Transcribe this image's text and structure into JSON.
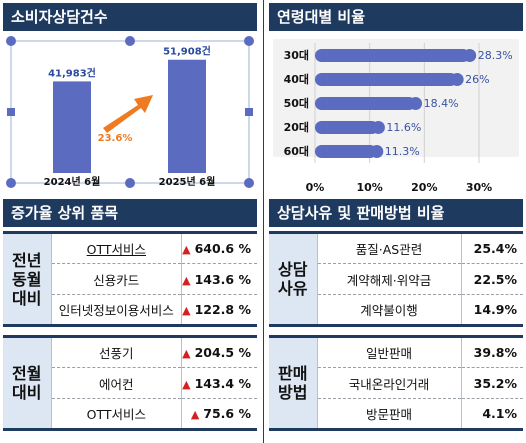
{
  "panels": {
    "consult": {
      "title": "소비자상담건수",
      "chart_data": {
        "type": "bar",
        "categories": [
          "2024년 6월",
          "2025년 6월"
        ],
        "values": [
          41983,
          51908
        ],
        "value_labels": [
          "41,983건",
          "51,908건"
        ],
        "growth_label": "23.6%"
      }
    },
    "age": {
      "title": "연령대별 비율",
      "chart_data": {
        "type": "bar",
        "orientation": "horizontal",
        "categories": [
          "30대",
          "40대",
          "50대",
          "20대",
          "60대"
        ],
        "values": [
          28.3,
          26,
          18.4,
          11.6,
          11.3
        ],
        "value_labels": [
          "28.3%",
          "26%",
          "18.4%",
          "11.6%",
          "11.3%"
        ],
        "xlim": [
          0,
          30
        ],
        "xticks": [
          "0%",
          "10%",
          "20%",
          "30%"
        ]
      }
    },
    "increase": {
      "title": "증가율 상위 품목",
      "groups": [
        {
          "label": "전년\n동월\n대비",
          "rows": [
            {
              "item": "OTT서비스",
              "value": "640.6 %"
            },
            {
              "item": "신용카드",
              "value": "143.6 %"
            },
            {
              "item": "인터넷정보이용서비스",
              "value": "122.8 %"
            }
          ]
        },
        {
          "label": "전월\n대비",
          "rows": [
            {
              "item": "선풍기",
              "value": "204.5 %"
            },
            {
              "item": "에어컨",
              "value": "143.4 %"
            },
            {
              "item": "OTT서비스",
              "value": "75.6 %"
            }
          ]
        }
      ]
    },
    "reason": {
      "title": "상담사유 및 판매방법 비율",
      "groups": [
        {
          "label": "상담\n사유",
          "rows": [
            {
              "item": "품질·AS관련",
              "value": "25.4%"
            },
            {
              "item": "계약해제·위약금",
              "value": "22.5%"
            },
            {
              "item": "계약불이행",
              "value": "14.9%"
            }
          ]
        },
        {
          "label": "판매\n방법",
          "rows": [
            {
              "item": "일반판매",
              "value": "39.8%"
            },
            {
              "item": "국내온라인거래",
              "value": "35.2%"
            },
            {
              "item": "방문판매",
              "value": "4.1%"
            }
          ]
        }
      ]
    }
  },
  "colors": {
    "header": "#1f3a5f",
    "bar": "#5b6bbf",
    "arrow": "#f07a20",
    "up_arrow": "#d62020",
    "label_bg": "#dde6f3"
  }
}
